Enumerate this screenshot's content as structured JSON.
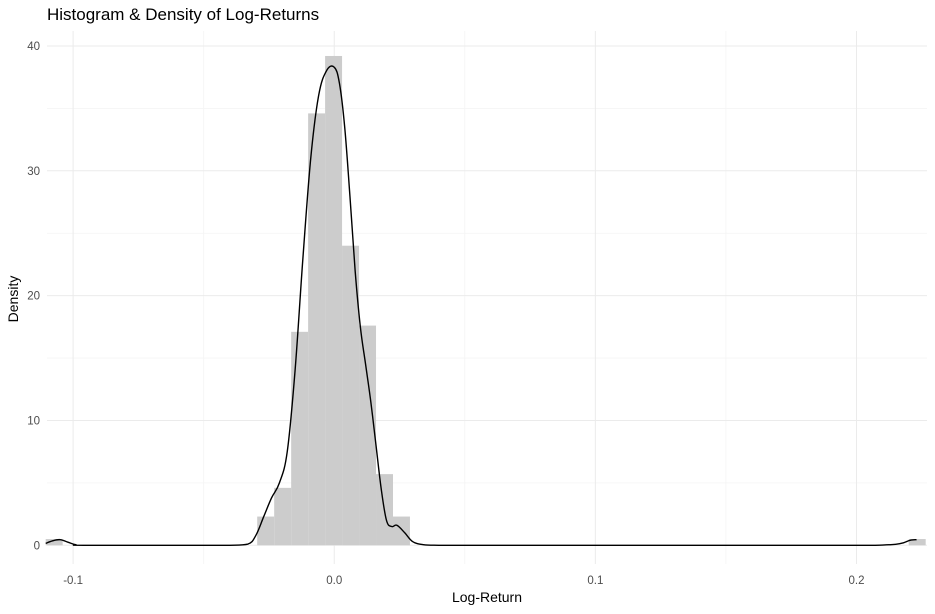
{
  "chart_data": {
    "type": "histogram-density",
    "title": "Histogram & Density of Log-Returns",
    "xlabel": "Log-Return",
    "ylabel": "Density",
    "xlim": [
      -0.11,
      0.227
    ],
    "ylim": [
      -1.5,
      41.2
    ],
    "grid": true,
    "legend": "none",
    "x_ticks": [
      {
        "value": -0.1,
        "label": "-0.1"
      },
      {
        "value": 0.0,
        "label": "0.0"
      },
      {
        "value": 0.1,
        "label": "0.1"
      },
      {
        "value": 0.2,
        "label": "0.2"
      }
    ],
    "y_ticks": [
      {
        "value": 0,
        "label": "0"
      },
      {
        "value": 10,
        "label": "10"
      },
      {
        "value": 20,
        "label": "20"
      },
      {
        "value": 30,
        "label": "30"
      },
      {
        "value": 40,
        "label": "40"
      }
    ],
    "bin_width": 0.0065,
    "histogram": [
      {
        "x0": -0.1105,
        "x1": -0.104,
        "density": 0.5
      },
      {
        "x0": -0.0295,
        "x1": -0.023,
        "density": 2.3
      },
      {
        "x0": -0.023,
        "x1": -0.0165,
        "density": 4.6
      },
      {
        "x0": -0.0165,
        "x1": -0.01,
        "density": 17.1
      },
      {
        "x0": -0.01,
        "x1": -0.0035,
        "density": 34.6
      },
      {
        "x0": -0.0035,
        "x1": 0.003,
        "density": 39.2
      },
      {
        "x0": 0.003,
        "x1": 0.0095,
        "density": 24.0
      },
      {
        "x0": 0.0095,
        "x1": 0.016,
        "density": 17.6
      },
      {
        "x0": 0.016,
        "x1": 0.0225,
        "density": 5.7
      },
      {
        "x0": 0.0225,
        "x1": 0.029,
        "density": 2.3
      },
      {
        "x0": 0.22,
        "x1": 0.2265,
        "density": 0.5
      }
    ],
    "density_curve": {
      "x": [
        -0.1105,
        -0.108,
        -0.105,
        -0.102,
        -0.099,
        -0.095,
        -0.05,
        -0.04,
        -0.033,
        -0.03,
        -0.027,
        -0.024,
        -0.021,
        -0.018,
        -0.015,
        -0.012,
        -0.009,
        -0.006,
        -0.003,
        0.0,
        0.002,
        0.004,
        0.006,
        0.008,
        0.01,
        0.012,
        0.014,
        0.016,
        0.018,
        0.02,
        0.022,
        0.024,
        0.027,
        0.03,
        0.034,
        0.04,
        0.06,
        0.1,
        0.15,
        0.2,
        0.21,
        0.215,
        0.218,
        0.2205,
        0.223
      ],
      "y": [
        0.15,
        0.35,
        0.45,
        0.25,
        0.05,
        0.0,
        0.0,
        0.0,
        0.1,
        0.8,
        2.3,
        3.8,
        5.0,
        7.5,
        14.0,
        23.0,
        31.0,
        36.0,
        38.0,
        38.3,
        37.0,
        33.5,
        28.0,
        22.0,
        17.5,
        14.5,
        11.5,
        8.0,
        4.5,
        2.0,
        1.5,
        1.6,
        1.0,
        0.3,
        0.05,
        0.0,
        0.0,
        0.0,
        0.0,
        0.0,
        0.02,
        0.08,
        0.2,
        0.4,
        0.45
      ]
    },
    "colors": {
      "bars": "#cccccc",
      "curve": "#000000",
      "grid_major": "#ebebeb",
      "grid_minor": "#f4f4f4",
      "tick_text": "#4d4d4d"
    }
  }
}
